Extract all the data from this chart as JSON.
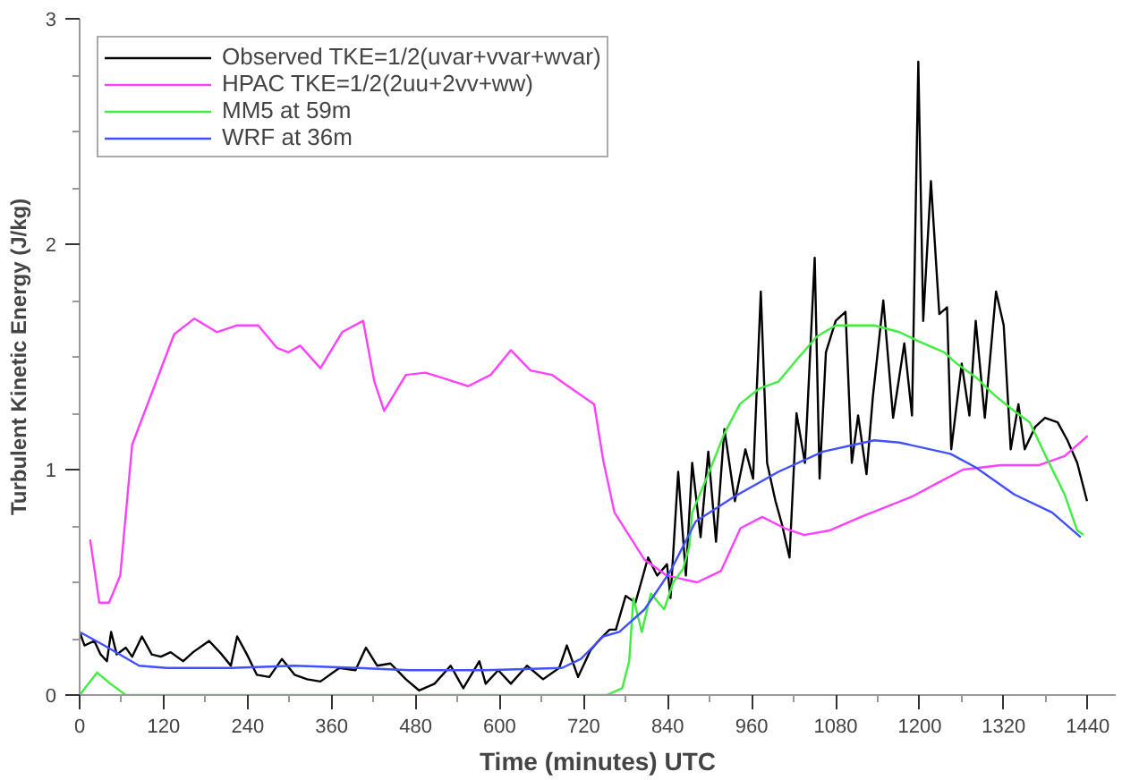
{
  "chart_data": {
    "type": "line",
    "xlabel": "Time (minutes) UTC",
    "ylabel": "Turbulent Kinetic Energy (J/kg)",
    "xlim": [
      0,
      1480
    ],
    "ylim": [
      0,
      3
    ],
    "xticks": [
      0,
      120,
      240,
      360,
      480,
      600,
      720,
      840,
      960,
      1080,
      1200,
      1320,
      1440
    ],
    "yticks": [
      0,
      1,
      2,
      3
    ],
    "grid": false,
    "legend": "top",
    "line_style": "solid",
    "marker": "none",
    "series": [
      {
        "name": "Observed TKE=1/2(uvar+vvar+wvar)",
        "color": "#000000",
        "x": [
          0,
          7,
          21,
          30,
          39,
          45,
          53,
          66,
          75,
          89,
          103,
          116,
          130,
          148,
          162,
          185,
          203,
          216,
          225,
          239,
          253,
          271,
          289,
          307,
          325,
          344,
          371,
          394,
          409,
          425,
          444,
          466,
          485,
          507,
          530,
          548,
          571,
          580,
          598,
          616,
          639,
          662,
          685,
          696,
          712,
          730,
          744,
          757,
          766,
          780,
          794,
          812,
          825,
          839,
          844,
          855,
          866,
          875,
          887,
          898,
          909,
          921,
          936,
          951,
          962,
          973,
          982,
          994,
          1003,
          1014,
          1024,
          1036,
          1050,
          1057,
          1066,
          1080,
          1094,
          1103,
          1112,
          1124,
          1133,
          1148,
          1162,
          1178,
          1189,
          1198,
          1205,
          1216,
          1228,
          1239,
          1245,
          1260,
          1271,
          1280,
          1293,
          1309,
          1320,
          1330,
          1341,
          1350,
          1365,
          1379,
          1397,
          1411,
          1425,
          1439
        ],
        "values": [
          0.28,
          0.22,
          0.24,
          0.18,
          0.15,
          0.28,
          0.18,
          0.21,
          0.17,
          0.26,
          0.18,
          0.17,
          0.19,
          0.15,
          0.19,
          0.24,
          0.18,
          0.13,
          0.26,
          0.18,
          0.09,
          0.08,
          0.16,
          0.09,
          0.07,
          0.06,
          0.12,
          0.11,
          0.21,
          0.13,
          0.14,
          0.07,
          0.02,
          0.05,
          0.13,
          0.03,
          0.15,
          0.05,
          0.11,
          0.05,
          0.13,
          0.07,
          0.12,
          0.22,
          0.08,
          0.2,
          0.25,
          0.29,
          0.29,
          0.44,
          0.41,
          0.61,
          0.53,
          0.58,
          0.43,
          0.99,
          0.53,
          1.03,
          0.7,
          1.08,
          0.68,
          1.18,
          0.86,
          1.09,
          0.96,
          1.79,
          1.03,
          0.86,
          0.76,
          0.61,
          1.25,
          1.03,
          1.94,
          0.96,
          1.52,
          1.66,
          1.7,
          1.03,
          1.24,
          0.98,
          1.32,
          1.75,
          1.23,
          1.56,
          1.24,
          2.81,
          1.66,
          2.28,
          1.69,
          1.72,
          1.09,
          1.47,
          1.24,
          1.66,
          1.23,
          1.79,
          1.64,
          1.09,
          1.29,
          1.09,
          1.19,
          1.23,
          1.21,
          1.13,
          1.03,
          0.86
        ]
      },
      {
        "name": "HPAC TKE=1/2(2uu+2vv+ww)",
        "color": "#ff40ff",
        "x": [
          15,
          28,
          42,
          58,
          75,
          135,
          164,
          196,
          225,
          255,
          282,
          298,
          315,
          344,
          375,
          405,
          421,
          435,
          466,
          494,
          525,
          555,
          587,
          616,
          644,
          675,
          735,
          748,
          764,
          807,
          839,
          882,
          916,
          944,
          975,
          1007,
          1035,
          1071,
          1116,
          1189,
          1225,
          1262,
          1316,
          1371,
          1407,
          1440
        ],
        "values": [
          0.69,
          0.41,
          0.41,
          0.53,
          1.11,
          1.6,
          1.67,
          1.61,
          1.64,
          1.64,
          1.54,
          1.52,
          1.55,
          1.45,
          1.61,
          1.66,
          1.39,
          1.26,
          1.42,
          1.43,
          1.4,
          1.37,
          1.42,
          1.53,
          1.44,
          1.42,
          1.29,
          1.04,
          0.81,
          0.6,
          0.53,
          0.5,
          0.55,
          0.74,
          0.79,
          0.74,
          0.71,
          0.73,
          0.79,
          0.88,
          0.94,
          1.0,
          1.02,
          1.02,
          1.06,
          1.15
        ]
      },
      {
        "name": "MM5 at 59m",
        "color": "#40ee40",
        "x": [
          0,
          25,
          44,
          66,
          753,
          775,
          785,
          791,
          803,
          816,
          835,
          848,
          862,
          871,
          875,
          898,
          921,
          943,
          971,
          998,
          1025,
          1053,
          1080,
          1135,
          1171,
          1198,
          1235,
          1253,
          1280,
          1307,
          1335,
          1357,
          1380,
          1407,
          1425,
          1434
        ],
        "values": [
          0,
          0.1,
          0.05,
          0,
          0,
          0.03,
          0.15,
          0.43,
          0.28,
          0.45,
          0.38,
          0.5,
          0.56,
          0.66,
          0.81,
          0.98,
          1.16,
          1.29,
          1.36,
          1.39,
          1.49,
          1.59,
          1.64,
          1.64,
          1.61,
          1.57,
          1.52,
          1.47,
          1.41,
          1.33,
          1.26,
          1.21,
          1.06,
          0.89,
          0.73,
          0.71
        ]
      },
      {
        "name": "WRF at 36m",
        "color": "#4050ff",
        "x": [
          0,
          35,
          85,
          125,
          216,
          307,
          398,
          471,
          580,
          689,
          716,
          748,
          771,
          807,
          844,
          880,
          935,
          998,
          1062,
          1135,
          1171,
          1244,
          1280,
          1335,
          1389,
          1430
        ],
        "values": [
          0.28,
          0.22,
          0.13,
          0.12,
          0.12,
          0.13,
          0.12,
          0.11,
          0.11,
          0.12,
          0.16,
          0.26,
          0.28,
          0.38,
          0.55,
          0.77,
          0.88,
          0.99,
          1.08,
          1.13,
          1.12,
          1.07,
          1.01,
          0.89,
          0.81,
          0.7
        ]
      }
    ]
  }
}
